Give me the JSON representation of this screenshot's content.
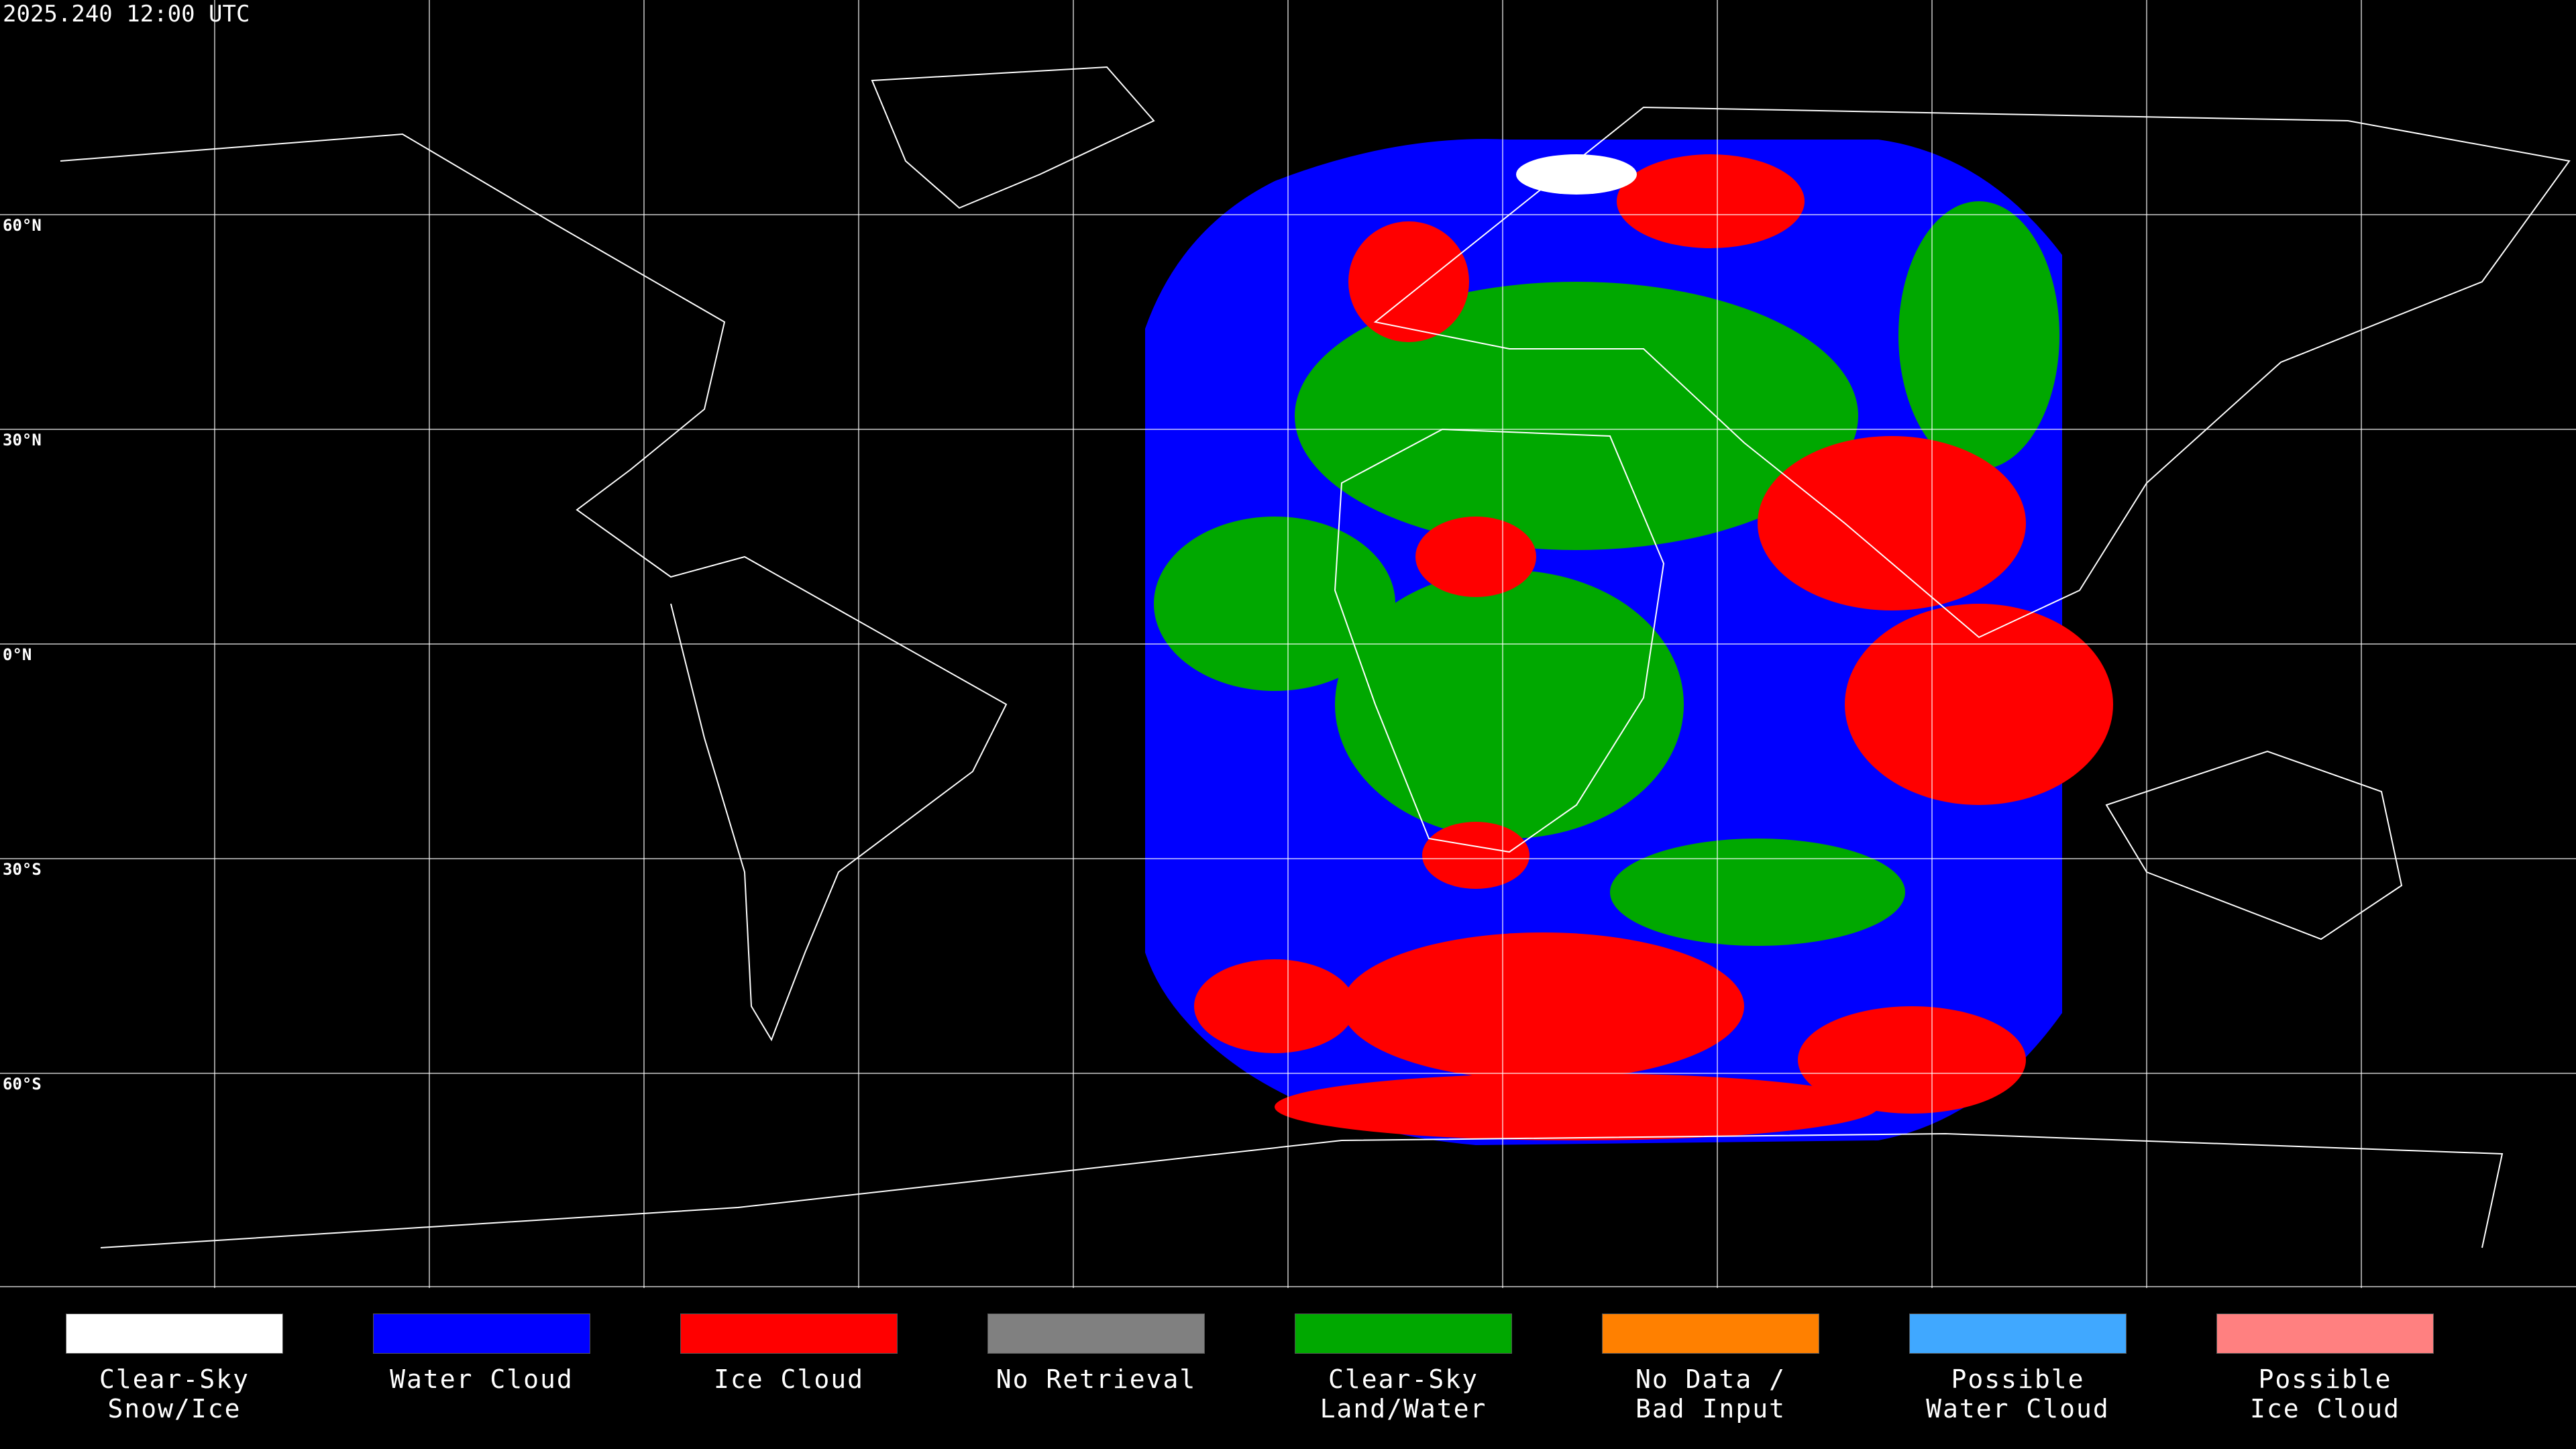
{
  "header": {
    "title": "2025.240 12:00 UTC"
  },
  "map": {
    "lat_labels": [
      "60°N",
      "30°N",
      "0°N",
      "30°S",
      "60°S"
    ]
  },
  "legend": {
    "items": [
      {
        "label": "Clear-Sky\nSnow/Ice",
        "color": "#ffffff"
      },
      {
        "label": "Water Cloud",
        "color": "#0000ff"
      },
      {
        "label": "Ice Cloud",
        "color": "#ff0000"
      },
      {
        "label": "No Retrieval",
        "color": "#808080"
      },
      {
        "label": "Clear-Sky\nLand/Water",
        "color": "#00a800"
      },
      {
        "label": "No Data /\nBad Input",
        "color": "#ff8000"
      },
      {
        "label": "Possible\nWater Cloud",
        "color": "#40a8ff"
      },
      {
        "label": "Possible\nIce Cloud",
        "color": "#ff8080"
      }
    ]
  }
}
